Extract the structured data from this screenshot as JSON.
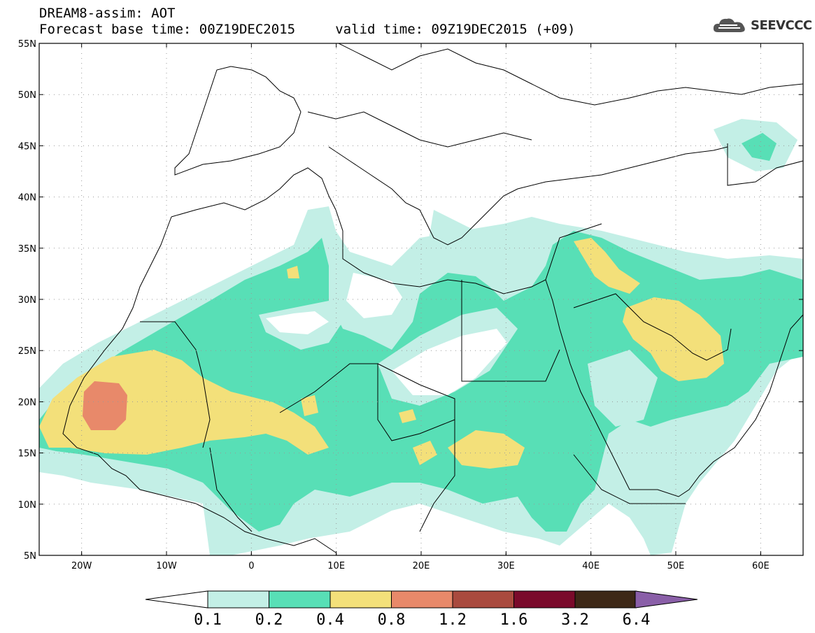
{
  "header": {
    "title": "DREAM8-assim: AOT",
    "subtitle": "Forecast base time: 00Z19DEC2015     valid time: 09Z19DEC2015 (+09)"
  },
  "logo": {
    "text": "SEEVCCC",
    "icon": "cloud-icon"
  },
  "map": {
    "lon_range": [
      -25,
      65
    ],
    "lat_range": [
      5,
      55
    ],
    "lat_labels": [
      "5N",
      "10N",
      "15N",
      "20N",
      "25N",
      "30N",
      "35N",
      "40N",
      "45N",
      "50N",
      "55N"
    ],
    "lon_labels": [
      "20W",
      "10W",
      "0",
      "10E",
      "20E",
      "30E",
      "40E",
      "50E",
      "60E"
    ]
  },
  "colorbar": {
    "levels": [
      "0.1",
      "0.2",
      "0.4",
      "0.8",
      "1.2",
      "1.6",
      "3.2",
      "6.4"
    ],
    "colors": [
      "#ffffff",
      "#c3efe6",
      "#58dfb6",
      "#f3e07a",
      "#e8896a",
      "#a94a3e",
      "#7a0a2b",
      "#3d2817",
      "#8a5fa8"
    ]
  }
}
